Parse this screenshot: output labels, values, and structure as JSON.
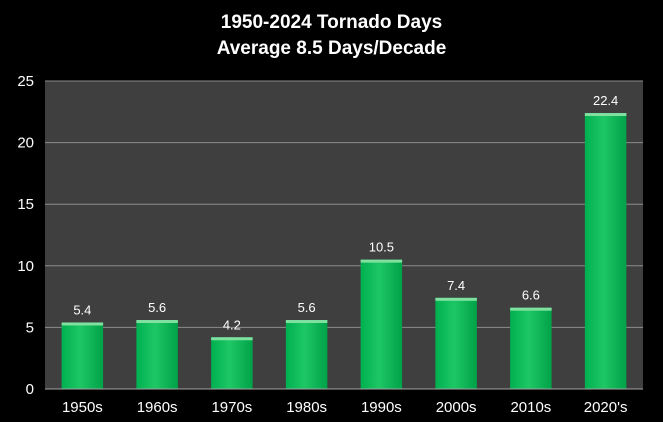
{
  "chart_data": {
    "type": "bar",
    "title": "1950-2024 Tornado Days",
    "subtitle": "Average 8.5 Days/Decade",
    "categories": [
      "1950s",
      "1960s",
      "1970s",
      "1980s",
      "1990s",
      "2000s",
      "2010s",
      "2020's"
    ],
    "values": [
      5.4,
      5.6,
      4.2,
      5.6,
      10.5,
      7.4,
      6.6,
      22.4
    ],
    "data_labels": [
      "5.4",
      "5.6",
      "4.2",
      "5.6",
      "10.5",
      "7.4",
      "6.6",
      "22.4"
    ],
    "y_ticks": [
      "0",
      "5",
      "10",
      "15",
      "20",
      "25"
    ],
    "xlabel": "",
    "ylabel": "",
    "ylim": [
      0,
      25
    ],
    "grid": true,
    "legend": "none",
    "colors": {
      "background": "#000000",
      "plot_background": "#3f3f3f",
      "bar_fill": "#00b050",
      "bar_highlight": "#7fe0a0",
      "gridline": "#8c8c8c",
      "text": "#ffffff"
    }
  }
}
